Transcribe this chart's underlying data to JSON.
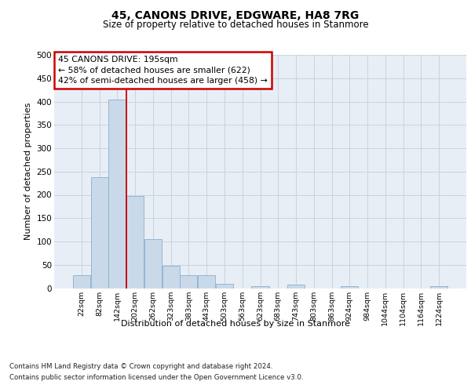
{
  "title": "45, CANONS DRIVE, EDGWARE, HA8 7RG",
  "subtitle": "Size of property relative to detached houses in Stanmore",
  "xlabel": "Distribution of detached houses by size in Stanmore",
  "ylabel": "Number of detached properties",
  "footer_line1": "Contains HM Land Registry data © Crown copyright and database right 2024.",
  "footer_line2": "Contains public sector information licensed under the Open Government Licence v3.0.",
  "bin_labels": [
    "22sqm",
    "82sqm",
    "142sqm",
    "202sqm",
    "262sqm",
    "323sqm",
    "383sqm",
    "443sqm",
    "503sqm",
    "563sqm",
    "623sqm",
    "683sqm",
    "743sqm",
    "803sqm",
    "863sqm",
    "924sqm",
    "984sqm",
    "1044sqm",
    "1104sqm",
    "1164sqm",
    "1224sqm"
  ],
  "bar_values": [
    27,
    237,
    405,
    197,
    105,
    48,
    27,
    27,
    10,
    0,
    5,
    0,
    7,
    0,
    0,
    5,
    0,
    0,
    0,
    0,
    5
  ],
  "bar_color": "#c9d9ea",
  "bar_edge_color": "#8ab0cc",
  "ylim": [
    0,
    500
  ],
  "yticks": [
    0,
    50,
    100,
    150,
    200,
    250,
    300,
    350,
    400,
    450,
    500
  ],
  "annotation_title": "45 CANONS DRIVE: 195sqm",
  "annotation_line1": "← 58% of detached houses are smaller (622)",
  "annotation_line2": "42% of semi-detached houses are larger (458) →",
  "annotation_box_color": "#ffffff",
  "annotation_box_edge": "#cc0000",
  "vline_color": "#cc0000",
  "vline_bin_index": 3,
  "grid_color": "#c8d4e0",
  "background_color": "#e8eef5"
}
